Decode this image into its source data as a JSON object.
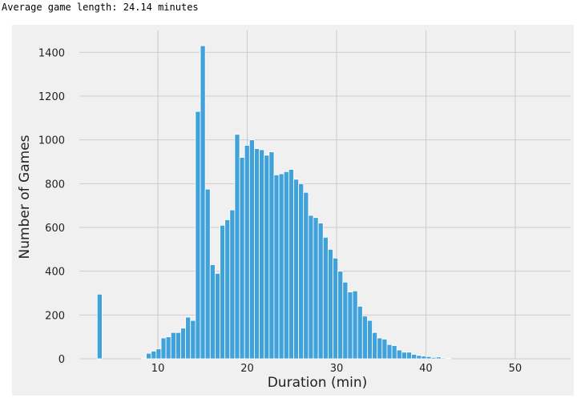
{
  "output_text": "Average game length: 24.14 minutes",
  "colors": {
    "bar": "#41a2d9",
    "bar_edge": "#ffffff",
    "plot_bg": "#f0f0f0",
    "grid": "#cbcbcb"
  },
  "chart_data": {
    "type": "bar",
    "title": "",
    "xlabel": "Duration (min)",
    "ylabel": "Number of Games",
    "xlim": [
      1.2,
      56.2
    ],
    "ylim": [
      0,
      1500
    ],
    "xticks": [
      10,
      20,
      30,
      40,
      50
    ],
    "yticks": [
      0,
      200,
      400,
      600,
      800,
      1000,
      1200,
      1400
    ],
    "grid": true,
    "bin_width": 0.55,
    "bin_start": 3.2,
    "values": [
      295,
      0,
      0,
      0,
      0,
      0,
      0,
      0,
      0,
      3,
      25,
      35,
      45,
      95,
      100,
      120,
      120,
      140,
      190,
      175,
      1130,
      1430,
      775,
      430,
      390,
      610,
      635,
      680,
      1025,
      920,
      975,
      1000,
      960,
      955,
      930,
      945,
      840,
      845,
      855,
      865,
      820,
      800,
      760,
      655,
      645,
      620,
      555,
      500,
      460,
      400,
      350,
      305,
      310,
      240,
      195,
      175,
      120,
      95,
      90,
      65,
      60,
      40,
      30,
      30,
      20,
      15,
      12,
      10,
      6,
      8,
      4,
      2
    ]
  }
}
